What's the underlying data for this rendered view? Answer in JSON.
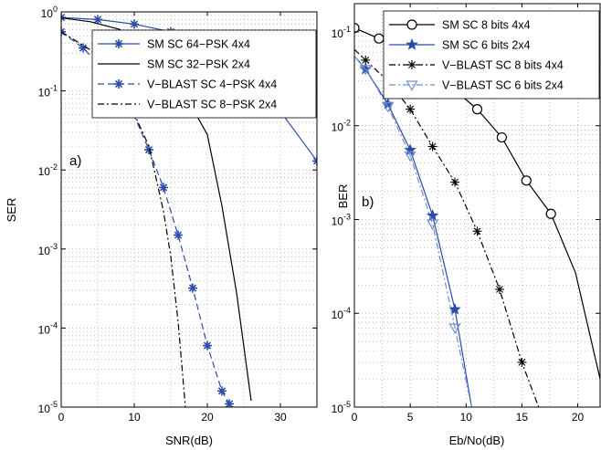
{
  "chart_data": [
    {
      "type": "line",
      "panel_label": "a)",
      "xlabel": "SNR(dB)",
      "ylabel": "SER",
      "x_scale": "linear",
      "y_scale": "log",
      "xlim": [
        0,
        35
      ],
      "ylim": [
        1e-05,
        1
      ],
      "xticks": [
        "0",
        "10",
        "20",
        "30"
      ],
      "yticks": [
        "10^0",
        "10^-1",
        "10^-2",
        "10^-3",
        "10^-4",
        "10^-5"
      ],
      "grid": true,
      "legend_position": "top-right",
      "series": [
        {
          "name": "SM SC 64−PSK 4x4",
          "color": "#2b4ba8",
          "dash": "solid",
          "marker": "star8",
          "marker_x": [
            0,
            5,
            10,
            15,
            20,
            25,
            30,
            35
          ],
          "x": [
            0,
            5,
            10,
            15,
            20,
            25,
            30,
            35
          ],
          "y": [
            0.85,
            0.8,
            0.7,
            0.56,
            0.35,
            0.16,
            0.055,
            0.013
          ]
        },
        {
          "name": "SM SC 32−PSK 2x4",
          "color": "#000000",
          "dash": "solid",
          "marker": "none",
          "marker_x": [],
          "x": [
            0,
            4,
            8,
            12,
            16,
            18,
            20,
            22,
            24,
            26
          ],
          "y": [
            0.84,
            0.75,
            0.6,
            0.35,
            0.13,
            0.06,
            0.028,
            0.0035,
            0.00028,
            1.2e-05
          ]
        },
        {
          "name": "V−BLAST SC 4−PSK 4x4",
          "color": "#2b4ba8",
          "dash": "dashed",
          "marker": "star8",
          "marker_x": [
            0,
            3,
            6,
            9,
            12,
            14,
            16,
            18,
            20,
            22,
            23
          ],
          "x": [
            0,
            3,
            6,
            9,
            12,
            14,
            16,
            18,
            20,
            22,
            23
          ],
          "y": [
            0.56,
            0.35,
            0.18,
            0.08,
            0.018,
            0.006,
            0.0015,
            0.00032,
            6e-05,
            1.6e-05,
            1.1e-05
          ]
        },
        {
          "name": "V−BLAST SC 8−PSK 2x4",
          "color": "#000000",
          "dash": "dashdot",
          "marker": "none",
          "marker_x": [],
          "x": [
            0,
            4,
            8,
            12,
            14,
            15,
            16,
            17
          ],
          "y": [
            0.56,
            0.33,
            0.13,
            0.02,
            0.003,
            0.0008,
            0.00012,
            1e-05
          ]
        }
      ]
    },
    {
      "type": "line",
      "panel_label": "b)",
      "xlabel": "Eb/No(dB)",
      "ylabel": "BER",
      "x_scale": "linear",
      "y_scale": "log",
      "xlim": [
        0,
        22
      ],
      "ylim": [
        1e-05,
        0.2
      ],
      "xticks": [
        "0",
        "5",
        "10",
        "15",
        "20"
      ],
      "yticks": [
        "10^-1",
        "10^-2",
        "10^-3",
        "10^-4",
        "10^-5"
      ],
      "grid": true,
      "legend_position": "top-right",
      "series": [
        {
          "name": "SM SC 8 bits 4x4",
          "color": "#000000",
          "dash": "solid",
          "marker": "circle",
          "marker_x": [
            0,
            2.2,
            4.4,
            6.6,
            8.8,
            11,
            13.2,
            15.4,
            17.6
          ],
          "x": [
            0,
            2.2,
            4.4,
            6.6,
            8.8,
            11,
            13.2,
            15.4,
            17.6,
            19.8,
            22
          ],
          "y": [
            0.11,
            0.085,
            0.06,
            0.04,
            0.025,
            0.015,
            0.0075,
            0.0026,
            0.00115,
            0.00027,
            2e-05
          ]
        },
        {
          "name": "SM SC 6 bits 2x4",
          "color": "#2b4ba8",
          "dash": "solid",
          "marker": "star5",
          "marker_x": [
            1,
            3,
            5,
            7,
            9
          ],
          "x": [
            0,
            1,
            3,
            5,
            7,
            9,
            10.5
          ],
          "y": [
            0.055,
            0.04,
            0.017,
            0.0055,
            0.0011,
            0.00011,
            1e-05
          ]
        },
        {
          "name": "V−BLAST SC 8 bits 4x4",
          "color": "#000000",
          "dash": "dashdot",
          "marker": "asterisk",
          "marker_x": [
            1,
            3,
            5,
            7,
            9,
            11,
            13,
            15
          ],
          "x": [
            0,
            1,
            3,
            5,
            7,
            9,
            11,
            13,
            15,
            16.5
          ],
          "y": [
            0.065,
            0.05,
            0.03,
            0.015,
            0.006,
            0.0025,
            0.00075,
            0.00018,
            3e-05,
            1e-05
          ]
        },
        {
          "name": "V−BLAST SC 6 bits 2x4",
          "color": "#6f8fd0",
          "dash": "dashdot",
          "marker": "triangle_down",
          "marker_x": [
            1,
            3,
            5,
            7,
            9
          ],
          "x": [
            0,
            1,
            3,
            5,
            7,
            9,
            10.5
          ],
          "y": [
            0.055,
            0.04,
            0.016,
            0.0048,
            0.0009,
            7e-05,
            1e-05
          ]
        }
      ]
    }
  ]
}
